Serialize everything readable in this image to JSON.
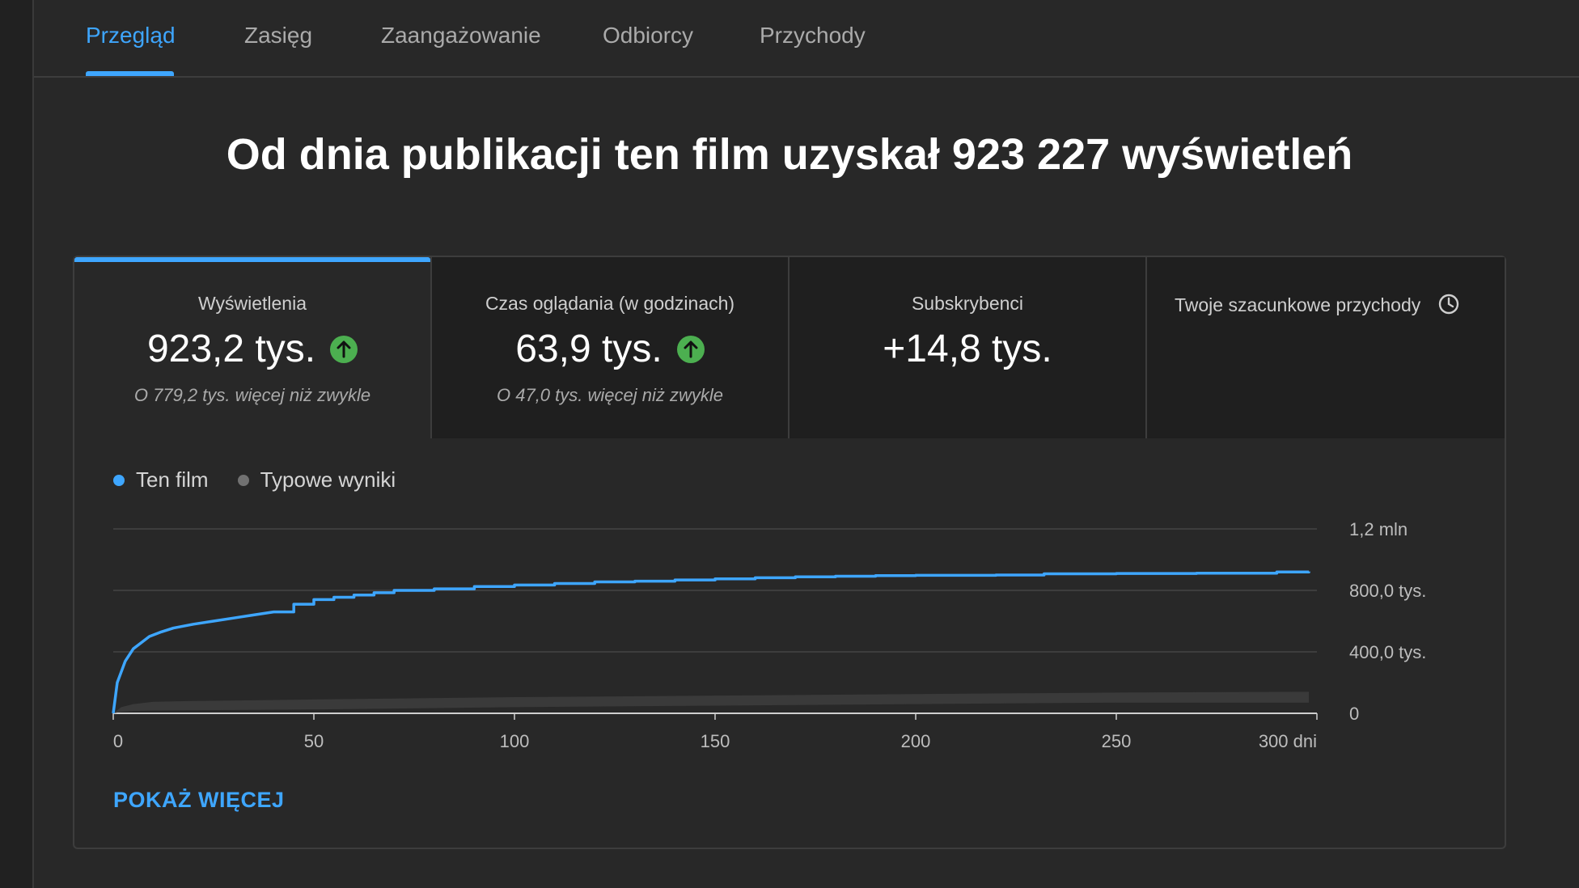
{
  "tabs": [
    {
      "label": "Przegląd",
      "active": true
    },
    {
      "label": "Zasięg",
      "active": false
    },
    {
      "label": "Zaangażowanie",
      "active": false
    },
    {
      "label": "Odbiorcy",
      "active": false
    },
    {
      "label": "Przychody",
      "active": false
    }
  ],
  "headline": "Od dnia publikacji ten film uzyskał 923 227 wyświetleń",
  "metrics": [
    {
      "label": "Wyświetlenia",
      "value": "923,2 tys.",
      "trend": "up",
      "note": "O 779,2 tys. więcej niż zwykle"
    },
    {
      "label": "Czas oglądania (w godzinach)",
      "value": "63,9 tys.",
      "trend": "up",
      "note": "O 47,0 tys. więcej niż zwykle"
    },
    {
      "label": "Subskrybenci",
      "value": "+14,8 tys."
    },
    {
      "label": "Twoje szacunkowe przychody",
      "icon": "clock-icon"
    }
  ],
  "legend": [
    {
      "label": "Ten film",
      "color": "#3ea6ff"
    },
    {
      "label": "Typowe wyniki",
      "color": "#717171"
    }
  ],
  "show_more": "POKAŻ WIĘCEJ",
  "chart_data": {
    "type": "line",
    "xlim": [
      0,
      300
    ],
    "ylim": [
      0,
      1200000
    ],
    "x_ticks": [
      0,
      50,
      100,
      150,
      200,
      250,
      300
    ],
    "x_tick_labels": [
      "0",
      "50",
      "100",
      "150",
      "200",
      "250",
      "300 dni"
    ],
    "y_ticks": [
      0,
      400000,
      800000,
      1200000
    ],
    "y_tick_labels": [
      "0",
      "400,0 tys.",
      "800,0 tys.",
      "1,2 mln"
    ],
    "grid": true,
    "legend_position": "top-left",
    "series": [
      {
        "name": "Ten film",
        "color": "#3ea6ff",
        "x": [
          0,
          1,
          2,
          3,
          4,
          5,
          7,
          9,
          12,
          15,
          20,
          25,
          30,
          35,
          40,
          45,
          50,
          55,
          60,
          65,
          70,
          80,
          90,
          100,
          110,
          120,
          130,
          140,
          150,
          160,
          170,
          180,
          190,
          200,
          220,
          232,
          250,
          270,
          280,
          290,
          298
        ],
        "y": [
          0,
          200000,
          270000,
          340000,
          380000,
          420000,
          460000,
          500000,
          530000,
          555000,
          580000,
          600000,
          620000,
          640000,
          660000,
          710000,
          740000,
          755000,
          770000,
          785000,
          800000,
          810000,
          825000,
          835000,
          845000,
          855000,
          860000,
          868000,
          875000,
          882000,
          888000,
          892000,
          896000,
          898000,
          900000,
          908000,
          910000,
          912000,
          912000,
          920000,
          923000
        ]
      },
      {
        "name": "Typowe wyniki",
        "color": "#3a3a3a",
        "type": "area",
        "x": [
          0,
          2,
          5,
          10,
          20,
          50,
          100,
          150,
          200,
          250,
          298
        ],
        "y_low": [
          0,
          10000,
          15000,
          18000,
          20000,
          25000,
          40000,
          50000,
          60000,
          70000,
          70000
        ],
        "y_high": [
          0,
          40000,
          60000,
          75000,
          80000,
          90000,
          105000,
          115000,
          125000,
          135000,
          140000
        ]
      }
    ]
  }
}
